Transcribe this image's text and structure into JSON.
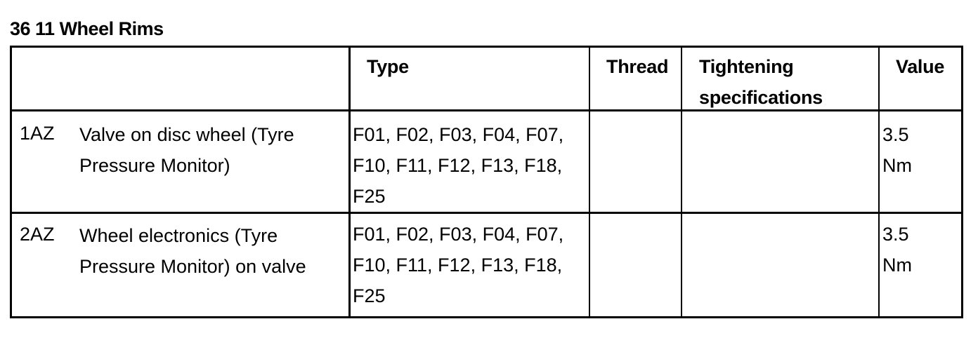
{
  "title": "36 11 Wheel Rims",
  "headers": {
    "type": "Type",
    "thread": "Thread",
    "tightening": "Tightening specifications",
    "value": "Value"
  },
  "rows": [
    {
      "code": "1AZ",
      "description": "Valve on disc wheel (Tyre Pressure Monitor)",
      "type": "F01, F02, F03, F04, F07, F10, F11, F12, F13, F18, F25",
      "thread": "",
      "tightening": "",
      "value": "3.5 Nm"
    },
    {
      "code": "2AZ",
      "description": "Wheel electronics (Tyre Pressure Monitor) on valve",
      "type": "F01, F02, F03, F04, F07, F10, F11, F12, F13, F18, F25",
      "thread": "",
      "tightening": "",
      "value": "3.5 Nm"
    }
  ]
}
